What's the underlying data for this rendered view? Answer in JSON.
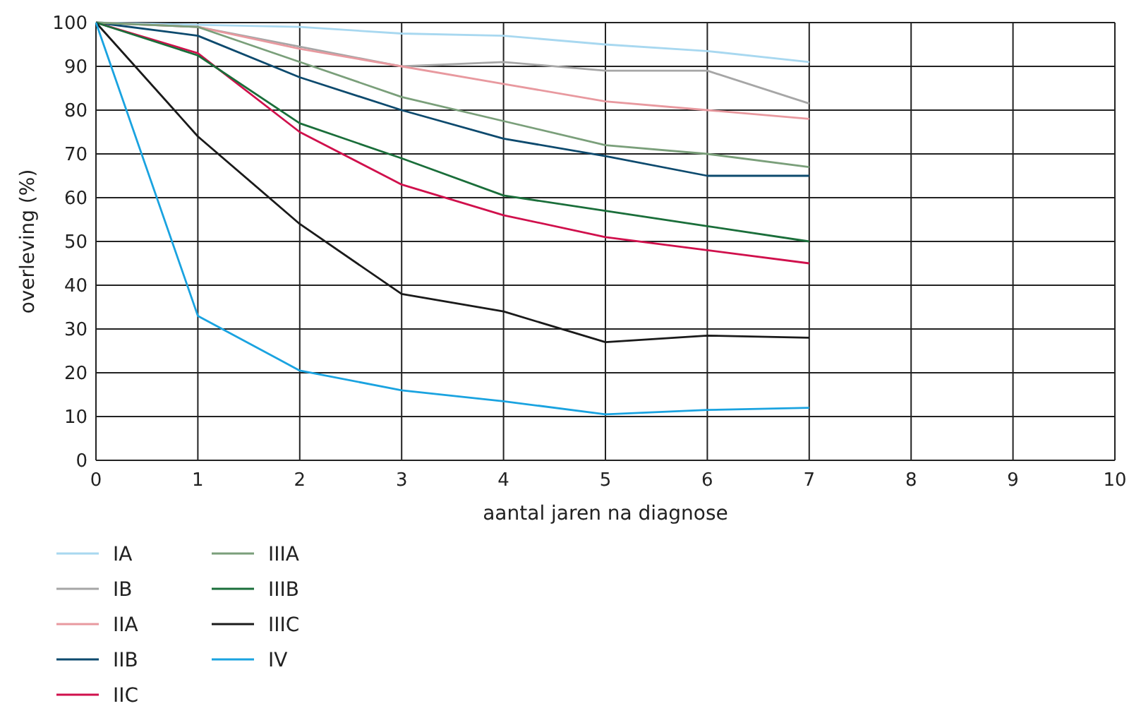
{
  "chart_data": {
    "type": "line",
    "xlabel": "aantal jaren na diagnose",
    "ylabel": "overleving (%)",
    "x": [
      0,
      1,
      2,
      3,
      4,
      5,
      6,
      7
    ],
    "xlim": [
      0,
      10
    ],
    "xticks": [
      0,
      1,
      2,
      3,
      4,
      5,
      6,
      7,
      8,
      9,
      10
    ],
    "ylim": [
      0,
      100
    ],
    "yticks": [
      0,
      10,
      20,
      30,
      40,
      50,
      60,
      70,
      80,
      90,
      100
    ],
    "grid": true,
    "legend": "bottom left",
    "marker": "none",
    "line_style": "solid",
    "series": [
      {
        "name": "IA",
        "color": "#a8d8f0",
        "values": [
          100,
          99.5,
          99,
          97.5,
          97,
          95,
          93.5,
          91
        ]
      },
      {
        "name": "IB",
        "color": "#a6a6a6",
        "values": [
          100,
          99,
          94.5,
          90,
          91,
          89,
          89,
          81.5
        ]
      },
      {
        "name": "IIA",
        "color": "#e8999f",
        "values": [
          100,
          99,
          94,
          90,
          86,
          82,
          80,
          78
        ]
      },
      {
        "name": "IIB",
        "color": "#0d4a6e",
        "values": [
          100,
          97,
          87.5,
          80,
          73.5,
          69.5,
          65,
          65
        ]
      },
      {
        "name": "IIC",
        "color": "#d0104c",
        "values": [
          100,
          93,
          75,
          63,
          56,
          51,
          48,
          45
        ]
      },
      {
        "name": "IIIA",
        "color": "#7a9f7a",
        "values": [
          100,
          99,
          91,
          83,
          77.5,
          72,
          70,
          67
        ]
      },
      {
        "name": "IIIB",
        "color": "#1a6e3a",
        "values": [
          100,
          92.5,
          77,
          69,
          60.5,
          57,
          53.5,
          50
        ]
      },
      {
        "name": "IIIC",
        "color": "#1a1a1a",
        "values": [
          100,
          74,
          54,
          38,
          34,
          27,
          28.5,
          28
        ]
      },
      {
        "name": "IV",
        "color": "#1aa3e0",
        "values": [
          100,
          33,
          20.5,
          16,
          13.5,
          10.5,
          11.5,
          12
        ]
      }
    ]
  }
}
